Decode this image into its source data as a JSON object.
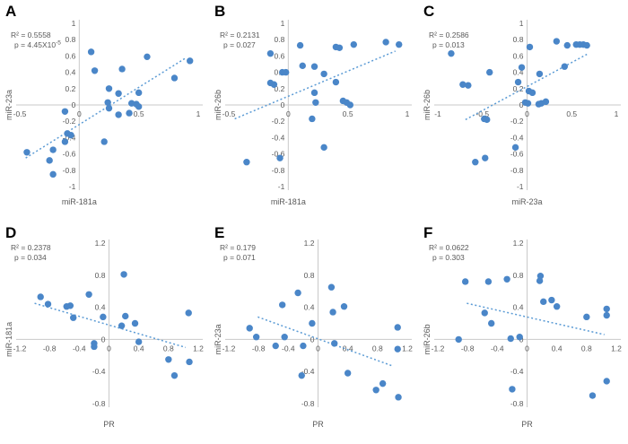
{
  "colors": {
    "point": "#4a86c8",
    "trend": "#5b9bd5",
    "axis": "#c9c9c9",
    "text": "#595959",
    "panel_letter": "#000000"
  },
  "chart_data": [
    {
      "type": "scatter",
      "letter": "A",
      "r2_label": "R² = 0.5558",
      "p_label": "p = 4.45X10",
      "p_sup": "-5",
      "xlabel": "miR-181a",
      "ylabel": "miR-23a",
      "xlim": [
        -0.5,
        1
      ],
      "ylim": [
        -1,
        1
      ],
      "xticks": [
        -0.5,
        0,
        0.5,
        1
      ],
      "yticks": [
        1,
        0.8,
        0.6,
        0.4,
        0.2,
        0,
        -0.2,
        -0.4,
        -0.6,
        -0.8,
        -1
      ],
      "points": [
        [
          0.1,
          0.65
        ],
        [
          0.13,
          0.42
        ],
        [
          0.36,
          0.44
        ],
        [
          0.57,
          0.59
        ],
        [
          0.93,
          0.54
        ],
        [
          0.8,
          0.33
        ],
        [
          0.25,
          0.2
        ],
        [
          0.33,
          0.14
        ],
        [
          0.5,
          0.15
        ],
        [
          0.24,
          0.03
        ],
        [
          0.25,
          -0.04
        ],
        [
          0.44,
          0.02
        ],
        [
          0.48,
          0.01
        ],
        [
          0.5,
          -0.02
        ],
        [
          0.33,
          -0.12
        ],
        [
          0.42,
          -0.1
        ],
        [
          -0.12,
          -0.08
        ],
        [
          -0.1,
          -0.35
        ],
        [
          -0.07,
          -0.37
        ],
        [
          -0.12,
          -0.45
        ],
        [
          0.21,
          -0.45
        ],
        [
          -0.22,
          -0.55
        ],
        [
          -0.44,
          -0.58
        ],
        [
          -0.25,
          -0.68
        ],
        [
          -0.22,
          -0.85
        ]
      ],
      "trend": [
        [
          -0.45,
          -0.65
        ],
        [
          0.9,
          0.58
        ]
      ]
    },
    {
      "type": "scatter",
      "letter": "B",
      "r2_label": "R² = 0.2131",
      "p_label": "p = 0.027",
      "p_sup": "",
      "xlabel": "miR-181a",
      "ylabel": "miR-26b",
      "xlim": [
        -0.5,
        1
      ],
      "ylim": [
        -1,
        1
      ],
      "xticks": [
        -0.5,
        0,
        0.5,
        1
      ],
      "yticks": [
        1,
        0.8,
        0.6,
        0.4,
        0.2,
        0,
        -0.2,
        -0.4,
        -0.6,
        -0.8,
        -1
      ],
      "points": [
        [
          -0.35,
          -0.7
        ],
        [
          -0.15,
          0.63
        ],
        [
          -0.15,
          0.27
        ],
        [
          -0.12,
          0.25
        ],
        [
          -0.05,
          0.4
        ],
        [
          -0.02,
          0.4
        ],
        [
          0.1,
          0.73
        ],
        [
          0.12,
          0.48
        ],
        [
          0.22,
          0.47
        ],
        [
          0.22,
          0.15
        ],
        [
          0.23,
          0.03
        ],
        [
          0.2,
          -0.17
        ],
        [
          0.3,
          0.38
        ],
        [
          0.3,
          -0.52
        ],
        [
          0.4,
          0.71
        ],
        [
          0.43,
          0.7
        ],
        [
          0.4,
          0.28
        ],
        [
          0.46,
          0.05
        ],
        [
          0.49,
          0.03
        ],
        [
          0.52,
          0.0
        ],
        [
          0.55,
          0.74
        ],
        [
          0.82,
          0.77
        ],
        [
          0.93,
          0.74
        ],
        [
          -0.07,
          -0.65
        ]
      ],
      "trend": [
        [
          -0.45,
          -0.17
        ],
        [
          0.9,
          0.66
        ]
      ]
    },
    {
      "type": "scatter",
      "letter": "C",
      "r2_label": "R² = 0.2586",
      "p_label": "p = 0.013",
      "p_sup": "",
      "xlabel": "miR-23a",
      "ylabel": "miR-26b",
      "xlim": [
        -1,
        1
      ],
      "ylim": [
        -1,
        1
      ],
      "xticks": [
        -1,
        -0.5,
        0,
        0.5,
        1
      ],
      "yticks": [
        1,
        0.8,
        0.6,
        0.4,
        0.2,
        0,
        -0.2,
        -0.4,
        -0.6,
        -0.8,
        -1
      ],
      "points": [
        [
          -0.85,
          0.63
        ],
        [
          -0.72,
          0.25
        ],
        [
          -0.66,
          0.24
        ],
        [
          -0.42,
          0.4
        ],
        [
          -0.48,
          -0.17
        ],
        [
          -0.45,
          -0.18
        ],
        [
          -0.58,
          -0.7
        ],
        [
          -0.47,
          -0.65
        ],
        [
          -0.13,
          -0.52
        ],
        [
          -0.1,
          0.28
        ],
        [
          -0.06,
          0.46
        ],
        [
          0.03,
          0.71
        ],
        [
          0.02,
          0.17
        ],
        [
          0.06,
          0.15
        ],
        [
          -0.02,
          0.03
        ],
        [
          0.01,
          0.02
        ],
        [
          0.14,
          0.38
        ],
        [
          0.13,
          0.01
        ],
        [
          0.16,
          0.02
        ],
        [
          0.21,
          0.04
        ],
        [
          0.33,
          0.78
        ],
        [
          0.42,
          0.47
        ],
        [
          0.45,
          0.73
        ],
        [
          0.55,
          0.74
        ],
        [
          0.59,
          0.74
        ],
        [
          0.63,
          0.74
        ],
        [
          0.67,
          0.73
        ]
      ],
      "trend": [
        [
          -0.69,
          -0.18
        ],
        [
          0.67,
          0.62
        ]
      ]
    },
    {
      "type": "scatter",
      "letter": "D",
      "r2_label": "R² = 0.2378",
      "p_label": "p = 0.034",
      "p_sup": "",
      "xlabel": "PR",
      "ylabel": "miR-181a",
      "xlim": [
        -1.2,
        1.2
      ],
      "ylim": [
        -0.8,
        1.2
      ],
      "xticks": [
        -1.2,
        -0.8,
        -0.4,
        0,
        0.4,
        0.8,
        1.2
      ],
      "yticks": [
        1.2,
        0.8,
        0.4,
        0,
        -0.4,
        -0.8
      ],
      "points": [
        [
          -0.92,
          0.53
        ],
        [
          -0.82,
          0.44
        ],
        [
          -0.57,
          0.41
        ],
        [
          -0.52,
          0.42
        ],
        [
          -0.48,
          0.27
        ],
        [
          -0.27,
          0.56
        ],
        [
          -0.2,
          -0.05
        ],
        [
          -0.2,
          -0.09
        ],
        [
          -0.08,
          0.28
        ],
        [
          0.2,
          0.81
        ],
        [
          0.17,
          0.17
        ],
        [
          0.22,
          0.29
        ],
        [
          0.35,
          0.2
        ],
        [
          0.4,
          -0.03
        ],
        [
          0.8,
          -0.25
        ],
        [
          0.88,
          -0.45
        ],
        [
          1.07,
          0.33
        ],
        [
          1.08,
          -0.28
        ]
      ],
      "trend": [
        [
          -1.0,
          0.45
        ],
        [
          1.03,
          -0.1
        ]
      ]
    },
    {
      "type": "scatter",
      "letter": "E",
      "r2_label": "R² = 0.179",
      "p_label": "p = 0.071",
      "p_sup": "",
      "xlabel": "PR",
      "ylabel": "miR-23a",
      "xlim": [
        -1.2,
        1.2
      ],
      "ylim": [
        -0.8,
        1.2
      ],
      "xticks": [
        -1.2,
        -0.8,
        -0.4,
        0,
        0.4,
        0.8,
        1.2
      ],
      "yticks": [
        1.2,
        0.8,
        0.4,
        0,
        -0.4,
        -0.8
      ],
      "points": [
        [
          -0.92,
          0.14
        ],
        [
          -0.83,
          0.03
        ],
        [
          -0.57,
          -0.08
        ],
        [
          -0.48,
          0.43
        ],
        [
          -0.45,
          0.03
        ],
        [
          -0.27,
          0.58
        ],
        [
          -0.2,
          -0.08
        ],
        [
          -0.22,
          -0.45
        ],
        [
          -0.08,
          0.2
        ],
        [
          0.18,
          0.65
        ],
        [
          0.2,
          0.34
        ],
        [
          0.22,
          -0.05
        ],
        [
          0.35,
          0.41
        ],
        [
          0.4,
          -0.42
        ],
        [
          0.78,
          -0.63
        ],
        [
          0.87,
          -0.55
        ],
        [
          1.07,
          0.15
        ],
        [
          1.07,
          -0.12
        ],
        [
          1.08,
          -0.72
        ]
      ],
      "trend": [
        [
          -0.81,
          0.28
        ],
        [
          1.0,
          -0.33
        ]
      ]
    },
    {
      "type": "scatter",
      "letter": "F",
      "r2_label": "R² = 0.0622",
      "p_label": "p = 0.303",
      "p_sup": "",
      "xlabel": "PR",
      "ylabel": "miR-26b",
      "xlim": [
        -1.2,
        1.2
      ],
      "ylim": [
        -0.8,
        1.2
      ],
      "xticks": [
        -1.2,
        -0.8,
        -0.4,
        0,
        0.4,
        0.8,
        1.2
      ],
      "yticks": [
        1.2,
        0.8,
        0.4,
        0,
        -0.4,
        -0.8
      ],
      "points": [
        [
          -0.92,
          0.0
        ],
        [
          -0.83,
          0.72
        ],
        [
          -0.52,
          0.72
        ],
        [
          -0.57,
          0.33
        ],
        [
          -0.48,
          0.2
        ],
        [
          -0.27,
          0.75
        ],
        [
          -0.22,
          0.01
        ],
        [
          -0.2,
          -0.62
        ],
        [
          -0.1,
          0.03
        ],
        [
          0.17,
          0.73
        ],
        [
          0.18,
          0.79
        ],
        [
          0.22,
          0.47
        ],
        [
          0.33,
          0.49
        ],
        [
          0.4,
          0.41
        ],
        [
          0.8,
          0.28
        ],
        [
          0.88,
          -0.7
        ],
        [
          1.07,
          0.38
        ],
        [
          1.07,
          0.3
        ],
        [
          1.07,
          -0.52
        ]
      ],
      "trend": [
        [
          -0.81,
          0.45
        ],
        [
          1.04,
          0.06
        ]
      ]
    }
  ]
}
